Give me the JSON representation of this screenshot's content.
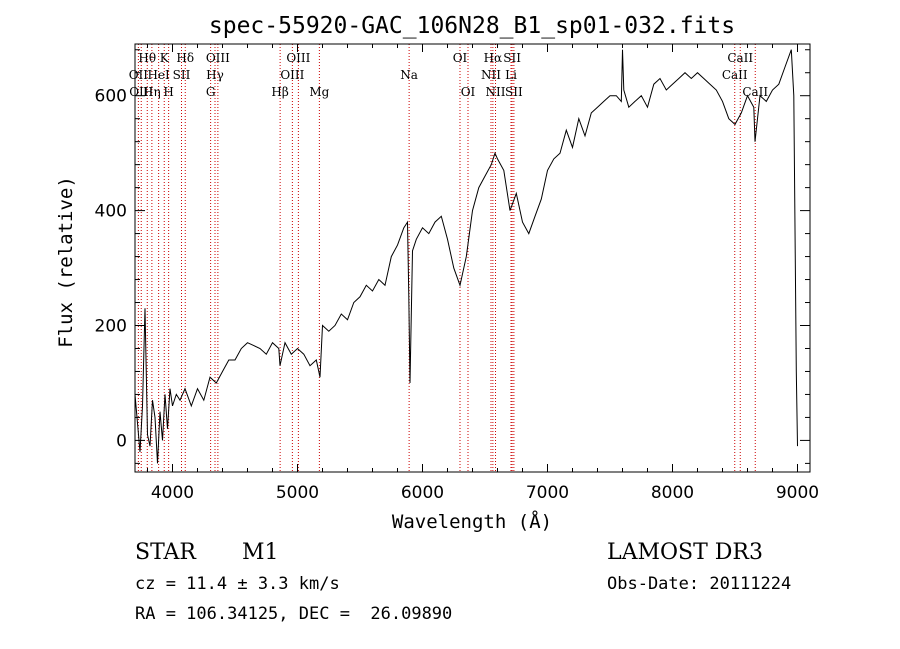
{
  "chart_data": {
    "type": "line",
    "title": "spec-55920-GAC_106N28_B1_sp01-032.fits",
    "xlabel": "Wavelength (Å)",
    "ylabel": "Flux (relative)",
    "xlim": [
      3700,
      9100
    ],
    "ylim": [
      -55,
      690
    ],
    "x_ticks": [
      4000,
      5000,
      6000,
      7000,
      8000,
      9000
    ],
    "y_ticks": [
      0,
      200,
      400,
      600
    ],
    "series": [
      {
        "name": "flux",
        "x": [
          3700,
          3720,
          3740,
          3760,
          3780,
          3800,
          3820,
          3840,
          3860,
          3880,
          3900,
          3920,
          3940,
          3960,
          3980,
          4000,
          4030,
          4060,
          4100,
          4150,
          4200,
          4250,
          4300,
          4350,
          4400,
          4450,
          4500,
          4550,
          4600,
          4650,
          4700,
          4750,
          4800,
          4850,
          4860,
          4900,
          4950,
          5000,
          5050,
          5100,
          5150,
          5180,
          5200,
          5250,
          5300,
          5350,
          5400,
          5450,
          5500,
          5550,
          5600,
          5650,
          5700,
          5750,
          5800,
          5850,
          5880,
          5890,
          5900,
          5920,
          5950,
          6000,
          6050,
          6100,
          6150,
          6200,
          6250,
          6300,
          6350,
          6400,
          6450,
          6500,
          6550,
          6580,
          6600,
          6650,
          6700,
          6750,
          6800,
          6850,
          6900,
          6950,
          7000,
          7050,
          7100,
          7150,
          7200,
          7250,
          7300,
          7350,
          7400,
          7450,
          7500,
          7550,
          7590,
          7600,
          7610,
          7650,
          7700,
          7750,
          7800,
          7850,
          7900,
          7950,
          8000,
          8050,
          8100,
          8150,
          8200,
          8250,
          8300,
          8350,
          8400,
          8450,
          8500,
          8550,
          8600,
          8650,
          8660,
          8700,
          8750,
          8800,
          8850,
          8900,
          8950,
          8970,
          8990,
          9000
        ],
        "y": [
          80,
          30,
          -20,
          60,
          230,
          10,
          -10,
          70,
          40,
          -40,
          50,
          0,
          80,
          20,
          90,
          60,
          80,
          70,
          90,
          60,
          90,
          70,
          110,
          100,
          120,
          140,
          140,
          160,
          170,
          165,
          160,
          150,
          170,
          160,
          130,
          170,
          150,
          160,
          150,
          130,
          140,
          110,
          200,
          190,
          200,
          220,
          210,
          240,
          250,
          270,
          260,
          280,
          270,
          320,
          340,
          370,
          380,
          250,
          100,
          330,
          350,
          370,
          360,
          380,
          390,
          350,
          300,
          270,
          320,
          400,
          440,
          460,
          480,
          500,
          490,
          470,
          400,
          430,
          380,
          360,
          390,
          420,
          470,
          490,
          500,
          540,
          510,
          560,
          530,
          570,
          580,
          590,
          600,
          600,
          590,
          680,
          610,
          580,
          590,
          600,
          580,
          620,
          630,
          610,
          620,
          630,
          640,
          630,
          640,
          630,
          620,
          610,
          590,
          560,
          550,
          570,
          600,
          580,
          520,
          600,
          590,
          610,
          620,
          650,
          680,
          600,
          120,
          -10
        ]
      }
    ],
    "spectral_lines": [
      {
        "label": "Hθ",
        "x": 3798,
        "row": 1
      },
      {
        "label": "K",
        "x": 3934,
        "row": 1
      },
      {
        "label": "Hδ",
        "x": 4102,
        "row": 1
      },
      {
        "label": "OIII",
        "x": 4363,
        "row": 1
      },
      {
        "label": "OIII",
        "x": 5007,
        "row": 1
      },
      {
        "label": "OI",
        "x": 6300,
        "row": 1
      },
      {
        "label": "Hα",
        "x": 6563,
        "row": 1
      },
      {
        "label": "SII",
        "x": 6717,
        "row": 1
      },
      {
        "label": "CaII",
        "x": 8542,
        "row": 1
      },
      {
        "label": "OII",
        "x": 3727,
        "row": 2
      },
      {
        "label": "HeI",
        "x": 3889,
        "row": 2
      },
      {
        "label": "SII",
        "x": 4072,
        "row": 2
      },
      {
        "label": "Hγ",
        "x": 4340,
        "row": 2
      },
      {
        "label": "OIII",
        "x": 4959,
        "row": 2
      },
      {
        "label": "Na",
        "x": 5893,
        "row": 2
      },
      {
        "label": "NII",
        "x": 6548,
        "row": 2
      },
      {
        "label": "Li",
        "x": 6708,
        "row": 2
      },
      {
        "label": "CaII",
        "x": 8498,
        "row": 2
      },
      {
        "label": "OIII",
        "x": 3750,
        "row": 3
      },
      {
        "label": "Hη",
        "x": 3835,
        "row": 3
      },
      {
        "label": "H",
        "x": 3969,
        "row": 3
      },
      {
        "label": "G",
        "x": 4305,
        "row": 3
      },
      {
        "label": "Hβ",
        "x": 4861,
        "row": 3
      },
      {
        "label": "Mg",
        "x": 5175,
        "row": 3
      },
      {
        "label": "OI",
        "x": 6364,
        "row": 3
      },
      {
        "label": "NII",
        "x": 6584,
        "row": 3
      },
      {
        "label": "SII",
        "x": 6731,
        "row": 3
      },
      {
        "label": "CaII",
        "x": 8662,
        "row": 3
      }
    ],
    "line_color": "#000000",
    "marker_color": "#cc0000"
  },
  "info": {
    "class": "STAR",
    "subclass": "M1",
    "survey": "LAMOST DR3",
    "cz": "cz = 11.4 ± 3.3 km/s",
    "obs_date": "Obs-Date: 20111224",
    "coords": "RA = 106.34125, DEC =  26.09890"
  }
}
